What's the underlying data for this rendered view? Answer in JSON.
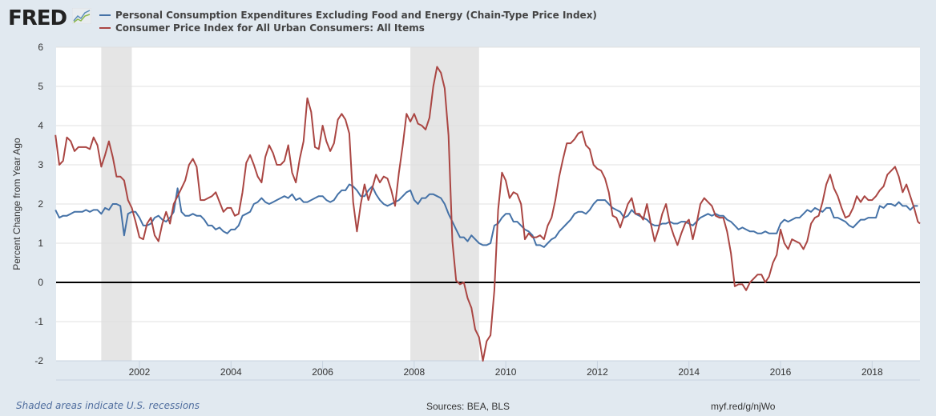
{
  "header": {
    "logo_text": "FRED",
    "logo_icon": "line-chart-icon"
  },
  "legend": [
    {
      "label": "Personal Consumption Expenditures Excluding Food and Energy (Chain-Type Price Index)",
      "color": "#4572a7"
    },
    {
      "label": "Consumer Price Index for All Urban Consumers: All Items",
      "color": "#aa4643"
    }
  ],
  "footer": {
    "note": "Shaded areas indicate U.S. recessions",
    "sources": "Sources: BEA, BLS",
    "url": "myf.red/g/njWo"
  },
  "chart_data": {
    "type": "line",
    "title": "",
    "xlabel": "",
    "ylabel": "Percent Change from Year Ago",
    "ylim": [
      -2,
      6
    ],
    "yticks": [
      -2,
      -1,
      0,
      1,
      2,
      3,
      4,
      5,
      6
    ],
    "xlim": [
      "2000-01",
      "2019-03"
    ],
    "xticks": [
      "2002",
      "2004",
      "2006",
      "2008",
      "2010",
      "2012",
      "2014",
      "2016",
      "2018"
    ],
    "grid": true,
    "zero_line": true,
    "recessions": [
      {
        "start": "2001-03",
        "end": "2001-11"
      },
      {
        "start": "2007-12",
        "end": "2009-06"
      }
    ],
    "frequency": "monthly",
    "series": [
      {
        "name": "Personal Consumption Expenditures Excluding Food and Energy (Chain-Type Price Index)",
        "color": "#4572a7",
        "start": "2000-03",
        "values": [
          1.85,
          1.65,
          1.7,
          1.7,
          1.75,
          1.8,
          1.8,
          1.8,
          1.85,
          1.8,
          1.85,
          1.85,
          1.75,
          1.9,
          1.85,
          2.0,
          2.0,
          1.95,
          1.2,
          1.75,
          1.8,
          1.8,
          1.65,
          1.45,
          1.45,
          1.5,
          1.65,
          1.7,
          1.6,
          1.55,
          1.65,
          1.8,
          2.4,
          1.8,
          1.7,
          1.7,
          1.75,
          1.7,
          1.7,
          1.6,
          1.45,
          1.45,
          1.35,
          1.4,
          1.3,
          1.25,
          1.35,
          1.35,
          1.45,
          1.7,
          1.75,
          1.8,
          2.0,
          2.05,
          2.15,
          2.05,
          2.0,
          2.05,
          2.1,
          2.15,
          2.2,
          2.15,
          2.25,
          2.1,
          2.15,
          2.05,
          2.05,
          2.1,
          2.15,
          2.2,
          2.2,
          2.1,
          2.05,
          2.1,
          2.25,
          2.35,
          2.35,
          2.5,
          2.45,
          2.35,
          2.2,
          2.2,
          2.35,
          2.45,
          2.25,
          2.1,
          2.0,
          1.95,
          2.0,
          2.05,
          2.1,
          2.2,
          2.3,
          2.35,
          2.1,
          2.0,
          2.15,
          2.15,
          2.25,
          2.25,
          2.2,
          2.15,
          2.0,
          1.75,
          1.55,
          1.35,
          1.15,
          1.15,
          1.05,
          1.2,
          1.1,
          1.0,
          0.95,
          0.95,
          1.0,
          1.45,
          1.5,
          1.65,
          1.75,
          1.75,
          1.55,
          1.55,
          1.45,
          1.35,
          1.3,
          1.2,
          0.95,
          0.95,
          0.9,
          1.0,
          1.1,
          1.15,
          1.3,
          1.4,
          1.5,
          1.6,
          1.75,
          1.8,
          1.8,
          1.75,
          1.85,
          2.0,
          2.1,
          2.1,
          2.1,
          2.0,
          1.9,
          1.85,
          1.8,
          1.65,
          1.7,
          1.85,
          1.75,
          1.7,
          1.65,
          1.6,
          1.5,
          1.45,
          1.45,
          1.5,
          1.5,
          1.55,
          1.5,
          1.5,
          1.55,
          1.55,
          1.5,
          1.45,
          1.55,
          1.65,
          1.7,
          1.75,
          1.7,
          1.75,
          1.7,
          1.7,
          1.6,
          1.55,
          1.45,
          1.35,
          1.4,
          1.35,
          1.3,
          1.3,
          1.25,
          1.25,
          1.3,
          1.25,
          1.25,
          1.25,
          1.5,
          1.6,
          1.55,
          1.6,
          1.65,
          1.65,
          1.75,
          1.85,
          1.8,
          1.9,
          1.85,
          1.8,
          1.9,
          1.9,
          1.65,
          1.65,
          1.6,
          1.55,
          1.45,
          1.4,
          1.5,
          1.6,
          1.6,
          1.65,
          1.65,
          1.65,
          1.95,
          1.9,
          2.0,
          2.0,
          1.95,
          2.05,
          1.95,
          1.95,
          1.85,
          1.95,
          1.95
        ]
      },
      {
        "name": "Consumer Price Index for All Urban Consumers: All Items",
        "color": "#aa4643",
        "start": "2000-03",
        "values": [
          3.76,
          3.0,
          3.1,
          3.7,
          3.6,
          3.35,
          3.45,
          3.45,
          3.45,
          3.4,
          3.7,
          3.5,
          2.95,
          3.25,
          3.6,
          3.2,
          2.7,
          2.7,
          2.6,
          2.1,
          1.9,
          1.55,
          1.15,
          1.1,
          1.5,
          1.65,
          1.2,
          1.05,
          1.5,
          1.8,
          1.5,
          2.0,
          2.2,
          2.4,
          2.6,
          3.0,
          3.15,
          2.95,
          2.1,
          2.1,
          2.15,
          2.2,
          2.3,
          2.05,
          1.8,
          1.9,
          1.9,
          1.7,
          1.75,
          2.3,
          3.05,
          3.25,
          3.0,
          2.7,
          2.55,
          3.2,
          3.5,
          3.3,
          3.0,
          3.0,
          3.1,
          3.5,
          2.8,
          2.55,
          3.15,
          3.6,
          4.7,
          4.35,
          3.45,
          3.4,
          4.0,
          3.6,
          3.35,
          3.55,
          4.15,
          4.3,
          4.15,
          3.8,
          2.05,
          1.3,
          2.0,
          2.5,
          2.1,
          2.4,
          2.75,
          2.55,
          2.7,
          2.65,
          2.35,
          1.95,
          2.8,
          3.5,
          4.3,
          4.1,
          4.3,
          4.05,
          4.0,
          3.9,
          4.2,
          5.0,
          5.5,
          5.35,
          4.95,
          3.75,
          1.05,
          0.05,
          -0.05,
          0.0,
          -0.4,
          -0.65,
          -1.2,
          -1.4,
          -2.0,
          -1.5,
          -1.35,
          -0.2,
          1.85,
          2.8,
          2.6,
          2.15,
          2.3,
          2.25,
          2.0,
          1.1,
          1.25,
          1.15,
          1.15,
          1.2,
          1.1,
          1.45,
          1.65,
          2.1,
          2.7,
          3.15,
          3.55,
          3.55,
          3.65,
          3.8,
          3.85,
          3.5,
          3.4,
          3.0,
          2.9,
          2.85,
          2.65,
          2.3,
          1.7,
          1.65,
          1.4,
          1.7,
          2.0,
          2.15,
          1.75,
          1.75,
          1.6,
          2.0,
          1.5,
          1.05,
          1.35,
          1.75,
          2.0,
          1.5,
          1.2,
          0.95,
          1.25,
          1.5,
          1.6,
          1.1,
          1.5,
          2.0,
          2.15,
          2.05,
          1.95,
          1.7,
          1.65,
          1.65,
          1.3,
          0.75,
          -0.1,
          -0.05,
          -0.05,
          -0.2,
          0.0,
          0.1,
          0.2,
          0.2,
          0.0,
          0.15,
          0.5,
          0.7,
          1.35,
          1.0,
          0.85,
          1.1,
          1.05,
          1.0,
          0.85,
          1.05,
          1.5,
          1.65,
          1.7,
          2.05,
          2.5,
          2.75,
          2.4,
          2.2,
          1.9,
          1.65,
          1.7,
          1.9,
          2.2,
          2.05,
          2.2,
          2.1,
          2.1,
          2.2,
          2.35,
          2.45,
          2.75,
          2.85,
          2.95,
          2.7,
          2.3,
          2.5,
          2.2,
          1.9,
          1.55,
          1.5
        ]
      }
    ]
  }
}
